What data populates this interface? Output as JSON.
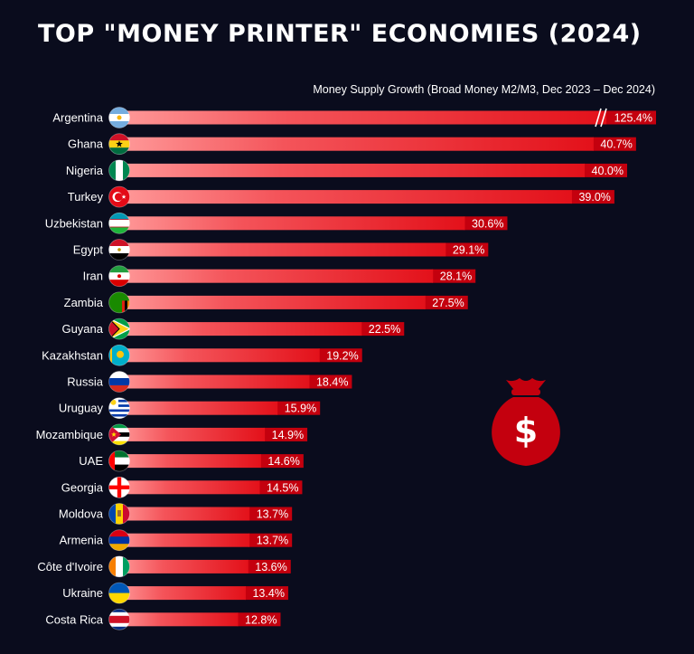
{
  "header": {
    "title": "TOP \"MONEY PRINTER\" ECONOMIES (2024)",
    "subtitle": "Money Supply Growth (Broad Money M2/M3, Dec 2023 – Dec 2024)"
  },
  "colors": {
    "background": "#0a0c1d",
    "bar_start": "#ff9a9a",
    "bar_end": "#e3111a",
    "value_box": "#c4000e",
    "money_bag": "#c4000e"
  },
  "icons": {
    "money_bag": "money-bag-icon",
    "dollar": "dollar-icon",
    "axis_break": "axis-break-icon"
  },
  "chart_data": {
    "type": "bar",
    "orientation": "horizontal",
    "title": "TOP \"MONEY PRINTER\" ECONOMIES (2024)",
    "subtitle": "Money Supply Growth (Broad Money M2/M3, Dec 2023 – Dec 2024)",
    "xlabel": "",
    "ylabel": "",
    "grid": false,
    "axis_break": "Argentina",
    "categories": [
      "Argentina",
      "Ghana",
      "Nigeria",
      "Turkey",
      "Uzbekistan",
      "Egypt",
      "Iran",
      "Zambia",
      "Guyana",
      "Kazakhstan",
      "Russia",
      "Uruguay",
      "Mozambique",
      "UAE",
      "Georgia",
      "Moldova",
      "Armenia",
      "Côte d'Ivoire",
      "Ukraine",
      "Costa Rica"
    ],
    "flags": [
      "argentina-flag-icon",
      "ghana-flag-icon",
      "nigeria-flag-icon",
      "turkey-flag-icon",
      "uzbekistan-flag-icon",
      "egypt-flag-icon",
      "iran-flag-icon",
      "zambia-flag-icon",
      "guyana-flag-icon",
      "kazakhstan-flag-icon",
      "russia-flag-icon",
      "uruguay-flag-icon",
      "mozambique-flag-icon",
      "uae-flag-icon",
      "georgia-flag-icon",
      "moldova-flag-icon",
      "armenia-flag-icon",
      "cote-divoire-flag-icon",
      "ukraine-flag-icon",
      "costa-rica-flag-icon"
    ],
    "values": [
      125.4,
      40.7,
      40.0,
      39.0,
      30.6,
      29.1,
      28.1,
      27.5,
      22.5,
      19.2,
      18.4,
      15.9,
      14.9,
      14.6,
      14.5,
      13.7,
      13.7,
      13.6,
      13.4,
      12.8
    ],
    "value_labels": [
      "125.4%",
      "40.7%",
      "40.0%",
      "39.0%",
      "30.6%",
      "29.1%",
      "28.1%",
      "27.5%",
      "22.5%",
      "19.2%",
      "18.4%",
      "15.9%",
      "14.9%",
      "14.6%",
      "14.5%",
      "13.7%",
      "13.7%",
      "13.6%",
      "13.4%",
      "12.8%"
    ]
  }
}
